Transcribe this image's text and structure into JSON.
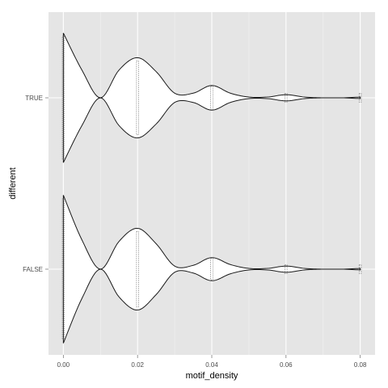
{
  "chart_data": {
    "type": "violin",
    "xlabel": "motif_density",
    "ylabel": "different",
    "xlim": [
      -0.004,
      0.084
    ],
    "x_ticks": [
      "0.00",
      "0.02",
      "0.04",
      "0.06",
      "0.08"
    ],
    "categories": [
      "FALSE",
      "TRUE"
    ],
    "grid": true,
    "panel_background": "#e5e5e5",
    "grid_color": "#ffffff",
    "violins": [
      {
        "category": "TRUE",
        "density": [
          [
            0.0,
            0.84
          ],
          [
            0.005,
            0.36
          ],
          [
            0.01,
            0.0
          ],
          [
            0.015,
            0.36
          ],
          [
            0.02,
            0.52
          ],
          [
            0.025,
            0.34
          ],
          [
            0.03,
            0.06
          ],
          [
            0.035,
            0.06
          ],
          [
            0.04,
            0.16
          ],
          [
            0.045,
            0.06
          ],
          [
            0.05,
            0.01
          ],
          [
            0.055,
            0.01
          ],
          [
            0.06,
            0.04
          ],
          [
            0.065,
            0.01
          ],
          [
            0.07,
            0.0
          ],
          [
            0.075,
            0.0
          ],
          [
            0.08,
            0.01
          ]
        ],
        "points_x": [
          0.0,
          0.02,
          0.04,
          0.06,
          0.08
        ]
      },
      {
        "category": "FALSE",
        "density": [
          [
            0.0,
            0.96
          ],
          [
            0.005,
            0.38
          ],
          [
            0.01,
            0.0
          ],
          [
            0.015,
            0.36
          ],
          [
            0.02,
            0.53
          ],
          [
            0.025,
            0.33
          ],
          [
            0.03,
            0.04
          ],
          [
            0.035,
            0.05
          ],
          [
            0.04,
            0.15
          ],
          [
            0.045,
            0.06
          ],
          [
            0.05,
            0.01
          ],
          [
            0.055,
            0.01
          ],
          [
            0.06,
            0.04
          ],
          [
            0.065,
            0.01
          ],
          [
            0.07,
            0.0
          ],
          [
            0.075,
            0.0
          ],
          [
            0.08,
            0.01
          ]
        ],
        "points_x": [
          0.0,
          0.02,
          0.04,
          0.06,
          0.08
        ]
      }
    ]
  }
}
